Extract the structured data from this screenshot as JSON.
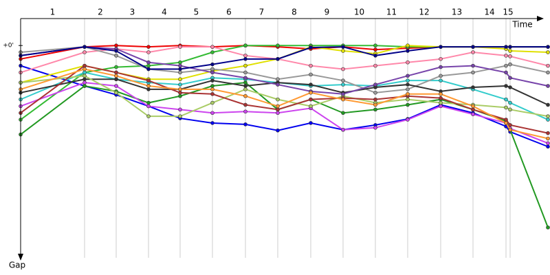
{
  "chart_data": {
    "type": "line",
    "categories": [
      "1",
      "2",
      "3",
      "4",
      "5",
      "6",
      "7",
      "8",
      "9",
      "10",
      "11",
      "12",
      "13",
      "14",
      "15"
    ],
    "x_label": "Time",
    "y_label": "Gap",
    "x": [
      0,
      93,
      139,
      186,
      232,
      279,
      327,
      374,
      422,
      469,
      516,
      563,
      611,
      658,
      706,
      712,
      767
    ],
    "xlim": [
      0,
      770
    ],
    "ylim": [
      -8,
      63
    ],
    "yticks": [
      {
        "value": 0,
        "label": "+0'"
      }
    ],
    "series": [
      {
        "color": "#0000ee",
        "values": [
          6,
          12,
          14.6,
          18,
          21.6,
          23,
          23.4,
          25.2,
          23,
          25,
          23.6,
          21.8,
          17.6,
          20,
          24,
          25.6,
          30
        ]
      },
      {
        "color": "#229922",
        "values": [
          26.4,
          12,
          13.6,
          17,
          15,
          12,
          11,
          19,
          16,
          20,
          19,
          17.6,
          16,
          19,
          22.4,
          25,
          54
        ]
      },
      {
        "color": "#ee0000",
        "values": [
          4,
          0.4,
          0,
          0.4,
          0,
          0.4,
          0,
          0.4,
          1,
          0.4,
          1.2,
          0.8,
          0.4,
          0.4,
          0.4,
          0.4,
          0.4
        ]
      },
      {
        "color": "#33bb33",
        "values": [
          22,
          8,
          6.4,
          6,
          5,
          2,
          0,
          0,
          0,
          0,
          0,
          0.4,
          0.4,
          0.4,
          0.4,
          0.4,
          0.4
        ]
      },
      {
        "color": "#e0e000",
        "values": [
          11,
          6,
          8,
          10,
          10,
          7.6,
          6,
          4,
          0.4,
          1.6,
          2.4,
          0,
          0.4,
          0.4,
          1,
          1.6,
          2
        ]
      },
      {
        "color": "#cc44ee",
        "values": [
          18,
          11,
          12,
          18,
          19,
          20,
          19.6,
          20,
          18.6,
          25,
          24.4,
          22,
          18,
          20.4,
          23,
          24.6,
          29
        ]
      },
      {
        "color": "#ff88aa",
        "values": [
          8,
          2,
          1,
          2,
          0.4,
          0.4,
          3,
          4,
          6,
          7,
          6,
          5,
          4,
          2,
          3,
          3.2,
          6
        ]
      },
      {
        "color": "#33cccc",
        "values": [
          16,
          8,
          10,
          11,
          11.6,
          9.6,
          10,
          11,
          12,
          11.6,
          12,
          10.4,
          10.4,
          13,
          16,
          17,
          22
        ]
      },
      {
        "color": "#999999",
        "values": [
          2,
          0.4,
          3,
          7,
          8,
          7,
          8,
          10,
          8.6,
          10.4,
          14,
          13,
          9,
          8,
          6,
          5.6,
          8
        ]
      },
      {
        "color": "#333333",
        "values": [
          14,
          10,
          10,
          13,
          13,
          10.4,
          12,
          11,
          11.6,
          14,
          12.4,
          11.6,
          13.6,
          12.4,
          12,
          12.4,
          17.6
        ]
      },
      {
        "color": "#aacc66",
        "values": [
          11,
          9,
          14,
          21,
          21,
          17,
          13,
          16,
          18,
          15,
          17,
          16,
          17,
          17.6,
          18.4,
          19,
          21
        ]
      },
      {
        "color": "#aa3333",
        "values": [
          20,
          6,
          8,
          10.4,
          14,
          14.4,
          17.6,
          19,
          16,
          15.6,
          16,
          15,
          15.6,
          19,
          22,
          23.6,
          26
        ]
      },
      {
        "color": "#7744aa",
        "values": [
          3,
          0.4,
          1,
          5,
          6,
          8,
          9.6,
          11.6,
          13.6,
          14.4,
          11.6,
          9,
          6.4,
          6,
          8,
          9.6,
          12
        ]
      },
      {
        "color": "#000088",
        "values": [
          3,
          0.4,
          1.6,
          7,
          7,
          5.6,
          4,
          4,
          0.6,
          0.4,
          3,
          1.6,
          0.4,
          0.4,
          0.4,
          0.4,
          0.4
        ]
      },
      {
        "color": "#ff9933",
        "values": [
          13,
          7,
          9,
          12,
          13,
          13,
          15,
          18,
          14,
          16,
          17.6,
          14.4,
          14.4,
          18,
          23,
          25,
          27.6
        ]
      }
    ]
  }
}
